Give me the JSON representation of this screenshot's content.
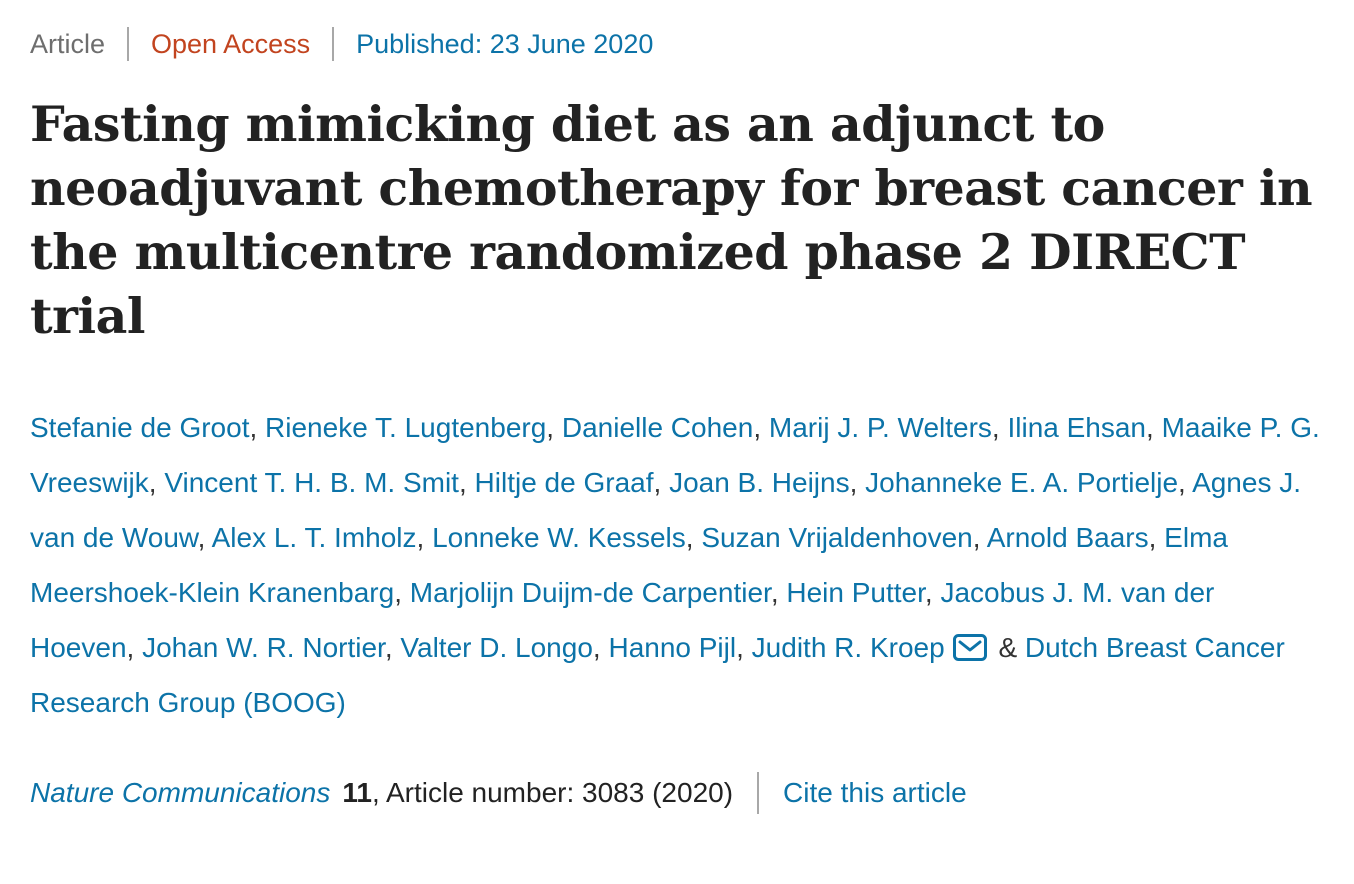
{
  "meta": {
    "article_type": "Article",
    "access": "Open Access",
    "published": "Published: 23 June 2020"
  },
  "title": "Fasting mimicking diet as an adjunct to neoadjuvant chemotherapy for breast cancer in the multicentre randomized phase 2 DIRECT trial",
  "authors": [
    "Stefanie de Groot",
    "Rieneke T. Lugtenberg",
    "Danielle Cohen",
    "Marij J. P. Welters",
    "Ilina Ehsan",
    "Maaike P. G. Vreeswijk",
    "Vincent T. H. B. M. Smit",
    "Hiltje de Graaf",
    "Joan B. Heijns",
    "Johanneke E. A. Portielje",
    "Agnes J. van de Wouw",
    "Alex L. T. Imholz",
    "Lonneke W. Kessels",
    "Suzan Vrijaldenhoven",
    "Arnold Baars",
    "Elma Meershoek-Klein Kranenbarg",
    "Marjolijn Duijm-de Carpentier",
    "Hein Putter",
    "Jacobus J. M. van der Hoeven",
    "Johan W. R. Nortier",
    "Valter D. Longo",
    "Hanno Pijl",
    "Judith R. Kroep"
  ],
  "corresponding_author": "Judith R. Kroep",
  "email_icon": "envelope-icon",
  "authors_conjunction": "&",
  "group_author": "Dutch Breast Cancer Research Group (BOOG)",
  "journal": {
    "name": "Nature Communications",
    "volume": "11",
    "article_info": ", Article number: 3083 (2020)",
    "cite_label": "Cite this article"
  },
  "colors": {
    "link_blue": "#0c73a8",
    "open_access_red": "#c2441f",
    "meta_gray": "#6e6e6e",
    "title_dark": "#222222",
    "separator_gray": "#a8a8a8"
  }
}
